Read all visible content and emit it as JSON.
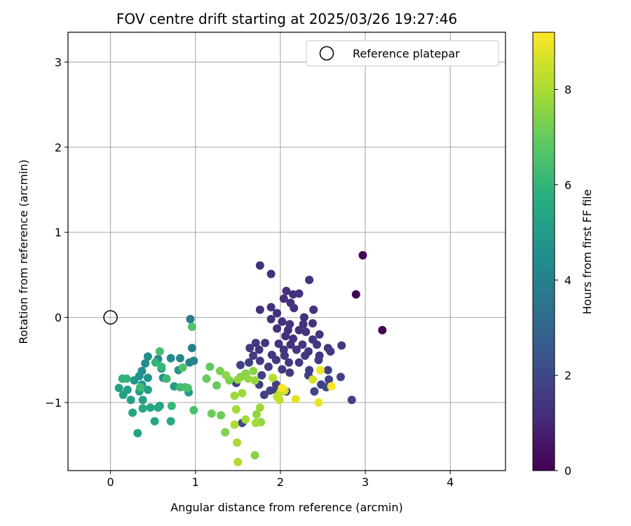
{
  "chart_data": {
    "type": "scatter",
    "title": "FOV centre drift starting at 2025/03/26 19:27:46",
    "xlabel": "Angular distance from reference (arcmin)",
    "ylabel": "Rotation from reference (arcmin)",
    "xlim": [
      -0.5,
      4.65
    ],
    "ylim": [
      -1.8,
      3.35
    ],
    "xticks": [
      "0",
      "1",
      "2",
      "3",
      "4"
    ],
    "yticks": [
      "−1",
      "0",
      "1",
      "2",
      "3"
    ],
    "grid": true,
    "legend": {
      "position": "top-right",
      "entries": [
        "Reference platepar"
      ]
    },
    "reference_point": {
      "x": 0,
      "y": 0,
      "marker": "hollow-circle"
    },
    "colorbar": {
      "label": "Hours from first FF file",
      "range": [
        0,
        9.2
      ],
      "ticks": [
        "0",
        "2",
        "4",
        "6",
        "8"
      ],
      "colormap": "viridis"
    },
    "colormap_stops": [
      "#440154",
      "#472d7b",
      "#3b528b",
      "#2c728e",
      "#21918c",
      "#28ae80",
      "#5ec962",
      "#addc30",
      "#fde725"
    ],
    "series": [
      {
        "points": [
          [
            2.97,
            0.73,
            0.1
          ],
          [
            2.89,
            0.27,
            0.1
          ],
          [
            3.2,
            -0.15,
            0.1
          ],
          [
            1.76,
            0.61,
            1.3
          ],
          [
            1.89,
            0.51,
            1.3
          ],
          [
            2.34,
            0.44,
            1.3
          ],
          [
            2.07,
            0.31,
            1.2
          ],
          [
            2.15,
            0.27,
            1.2
          ],
          [
            2.22,
            0.28,
            1.3
          ],
          [
            2.04,
            0.22,
            1.2
          ],
          [
            2.12,
            0.17,
            1.3
          ],
          [
            2.16,
            0.11,
            1.3
          ],
          [
            2.39,
            0.09,
            1.3
          ],
          [
            1.76,
            0.09,
            1.3
          ],
          [
            1.89,
            0.12,
            1.3
          ],
          [
            1.96,
            0.05,
            1.2
          ],
          [
            2.28,
            0.0,
            1.3
          ],
          [
            1.89,
            -0.02,
            1.3
          ],
          [
            2.02,
            -0.05,
            1.2
          ],
          [
            2.11,
            -0.08,
            1.3
          ],
          [
            2.27,
            -0.08,
            1.3
          ],
          [
            2.38,
            -0.07,
            1.3
          ],
          [
            1.96,
            -0.13,
            1.2
          ],
          [
            2.09,
            -0.15,
            1.2
          ],
          [
            2.22,
            -0.15,
            1.3
          ],
          [
            2.3,
            -0.17,
            1.3
          ],
          [
            2.46,
            -0.2,
            1.4
          ],
          [
            2.06,
            -0.22,
            1.2
          ],
          [
            2.15,
            -0.25,
            1.3
          ],
          [
            2.38,
            -0.26,
            1.4
          ],
          [
            1.71,
            -0.3,
            1.5
          ],
          [
            1.82,
            -0.3,
            1.4
          ],
          [
            1.98,
            -0.31,
            1.3
          ],
          [
            2.12,
            -0.32,
            1.3
          ],
          [
            2.26,
            -0.32,
            1.4
          ],
          [
            2.43,
            -0.32,
            1.4
          ],
          [
            2.72,
            -0.33,
            1.5
          ],
          [
            1.64,
            -0.36,
            1.6
          ],
          [
            1.75,
            -0.38,
            1.5
          ],
          [
            2.04,
            -0.38,
            1.4
          ],
          [
            2.19,
            -0.38,
            1.4
          ],
          [
            2.33,
            -0.4,
            1.4
          ],
          [
            2.56,
            -0.36,
            1.5
          ],
          [
            1.68,
            -0.45,
            1.6
          ],
          [
            1.9,
            -0.44,
            1.5
          ],
          [
            2.05,
            -0.45,
            1.4
          ],
          [
            2.29,
            -0.45,
            1.5
          ],
          [
            2.46,
            -0.45,
            1.5
          ],
          [
            2.59,
            -0.4,
            1.6
          ],
          [
            1.63,
            -0.53,
            1.7
          ],
          [
            1.76,
            -0.51,
            1.6
          ],
          [
            1.95,
            -0.5,
            1.5
          ],
          [
            2.1,
            -0.53,
            1.5
          ],
          [
            2.22,
            -0.53,
            1.5
          ],
          [
            2.45,
            -0.5,
            1.6
          ],
          [
            1.53,
            -0.56,
            1.8
          ],
          [
            1.86,
            -0.58,
            1.6
          ],
          [
            2.02,
            -0.61,
            1.6
          ],
          [
            2.11,
            -0.65,
            1.6
          ],
          [
            2.34,
            -0.62,
            1.7
          ],
          [
            2.56,
            -0.62,
            1.7
          ],
          [
            1.78,
            -0.68,
            1.7
          ],
          [
            2.33,
            -0.68,
            1.7
          ],
          [
            2.57,
            -0.73,
            1.8
          ],
          [
            2.71,
            -0.7,
            1.8
          ],
          [
            1.48,
            -0.77,
            1.9
          ],
          [
            1.75,
            -0.79,
            1.8
          ],
          [
            1.95,
            -0.79,
            1.7
          ],
          [
            2.48,
            -0.79,
            1.8
          ],
          [
            1.88,
            -0.86,
            1.8
          ],
          [
            1.95,
            -0.85,
            1.8
          ],
          [
            2.07,
            -0.87,
            1.8
          ],
          [
            1.81,
            -0.91,
            1.8
          ],
          [
            2.4,
            -0.87,
            1.9
          ],
          [
            2.54,
            -0.82,
            1.9
          ],
          [
            2.84,
            -0.97,
            1.8
          ],
          [
            1.55,
            -1.24,
            2.0
          ],
          [
            0.94,
            -0.02,
            3.8
          ],
          [
            0.96,
            -0.36,
            3.9
          ],
          [
            0.93,
            -0.53,
            4.0
          ],
          [
            0.98,
            -0.51,
            4.1
          ],
          [
            0.82,
            -0.48,
            4.2
          ],
          [
            0.71,
            -0.48,
            4.3
          ],
          [
            0.56,
            -0.49,
            4.3
          ],
          [
            0.44,
            -0.46,
            4.4
          ],
          [
            0.41,
            -0.54,
            4.4
          ],
          [
            0.6,
            -0.6,
            4.5
          ],
          [
            0.37,
            -0.63,
            4.6
          ],
          [
            0.34,
            -0.69,
            4.6
          ],
          [
            0.44,
            -0.71,
            4.7
          ],
          [
            0.62,
            -0.71,
            4.7
          ],
          [
            0.28,
            -0.74,
            4.8
          ],
          [
            0.37,
            -0.79,
            4.8
          ],
          [
            0.8,
            -0.62,
            4.8
          ],
          [
            0.92,
            -0.88,
            5.0
          ],
          [
            0.75,
            -0.81,
            5.0
          ],
          [
            0.44,
            -0.85,
            5.1
          ],
          [
            0.34,
            -0.87,
            5.1
          ],
          [
            0.24,
            -0.97,
            5.2
          ],
          [
            0.15,
            -0.91,
            5.2
          ],
          [
            0.2,
            -0.85,
            5.2
          ],
          [
            0.1,
            -0.83,
            5.2
          ],
          [
            0.38,
            -0.97,
            5.2
          ],
          [
            0.58,
            -1.04,
            5.3
          ],
          [
            0.47,
            -1.06,
            5.4
          ],
          [
            0.56,
            -1.06,
            5.4
          ],
          [
            0.38,
            -1.07,
            5.4
          ],
          [
            0.26,
            -1.12,
            5.4
          ],
          [
            0.52,
            -1.22,
            5.4
          ],
          [
            0.32,
            -1.36,
            5.3
          ],
          [
            0.71,
            -1.22,
            5.6
          ],
          [
            0.14,
            -0.72,
            5.9
          ],
          [
            0.19,
            -0.72,
            5.9
          ],
          [
            0.53,
            -0.53,
            6.0
          ],
          [
            0.6,
            -0.58,
            6.1
          ],
          [
            0.66,
            -0.72,
            6.2
          ],
          [
            0.72,
            -1.04,
            6.1
          ],
          [
            0.82,
            -0.82,
            6.3
          ],
          [
            0.88,
            -0.82,
            6.4
          ],
          [
            0.35,
            -0.82,
            6.3
          ],
          [
            0.58,
            -0.4,
            6.4
          ],
          [
            0.85,
            -0.59,
            6.6
          ],
          [
            0.91,
            -0.83,
            6.5
          ],
          [
            0.98,
            -1.09,
            6.5
          ],
          [
            0.96,
            -0.11,
            6.6
          ],
          [
            1.17,
            -0.58,
            6.9
          ],
          [
            1.25,
            -0.8,
            7.0
          ],
          [
            1.13,
            -0.72,
            7.0
          ],
          [
            1.19,
            -1.13,
            7.1
          ],
          [
            1.3,
            -1.15,
            7.1
          ],
          [
            1.4,
            -0.74,
            7.3
          ],
          [
            1.29,
            -0.63,
            7.3
          ],
          [
            1.35,
            -1.35,
            7.4
          ],
          [
            1.53,
            -0.7,
            7.4
          ],
          [
            1.59,
            -0.66,
            7.5
          ],
          [
            1.68,
            -0.63,
            7.5
          ],
          [
            1.7,
            -1.62,
            7.5
          ],
          [
            1.7,
            -0.74,
            7.7
          ],
          [
            1.5,
            -0.73,
            7.7
          ],
          [
            1.62,
            -0.72,
            7.7
          ],
          [
            1.46,
            -0.92,
            7.8
          ],
          [
            1.55,
            -0.89,
            7.8
          ],
          [
            1.77,
            -1.23,
            7.7
          ],
          [
            1.72,
            -1.14,
            7.7
          ],
          [
            1.76,
            -1.06,
            7.8
          ],
          [
            1.48,
            -1.08,
            7.9
          ],
          [
            1.59,
            -1.2,
            7.9
          ],
          [
            1.71,
            -1.24,
            7.9
          ],
          [
            1.46,
            -1.26,
            8.0
          ],
          [
            1.49,
            -1.47,
            8.0
          ],
          [
            1.5,
            -1.7,
            8.1
          ],
          [
            1.36,
            -0.68,
            7.6
          ],
          [
            1.91,
            -0.71,
            8.2
          ],
          [
            1.96,
            -0.93,
            8.3
          ],
          [
            1.99,
            -0.97,
            8.4
          ],
          [
            2.0,
            -0.88,
            8.5
          ],
          [
            2.05,
            -0.86,
            8.6
          ],
          [
            2.38,
            -0.73,
            8.6
          ],
          [
            2.18,
            -0.96,
            8.8
          ],
          [
            2.45,
            -1.0,
            8.9
          ],
          [
            2.47,
            -0.62,
            9.0
          ],
          [
            2.6,
            -0.81,
            9.1
          ],
          [
            2.02,
            -0.83,
            9.1
          ]
        ]
      }
    ]
  }
}
